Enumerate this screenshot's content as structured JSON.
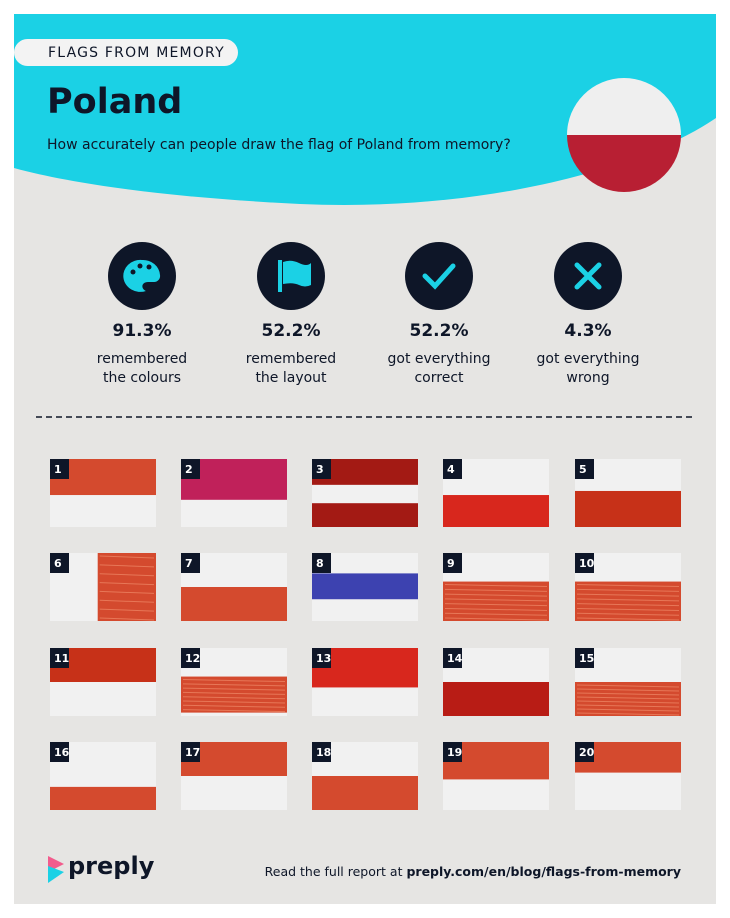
{
  "header": {
    "tag": "FLAGS FROM MEMORY",
    "title": "Poland",
    "subtitle": "How accurately can people draw the flag of Poland from memory?"
  },
  "stats": [
    {
      "value": "91.3%",
      "label_lines": [
        "remembered",
        "the colours"
      ]
    },
    {
      "value": "52.2%",
      "label_lines": [
        "remembered",
        "the layout"
      ]
    },
    {
      "value": "52.2%",
      "label_lines": [
        "got everything",
        "correct"
      ]
    },
    {
      "value": "4.3%",
      "label_lines": [
        "got everything",
        "wrong"
      ]
    }
  ],
  "flags": [
    "1",
    "2",
    "3",
    "4",
    "5",
    "6",
    "7",
    "8",
    "9",
    "10",
    "11",
    "12",
    "13",
    "14",
    "15",
    "16",
    "17",
    "18",
    "19",
    "20"
  ],
  "footer": {
    "brand": "preply",
    "text": "Read the full report at",
    "link": "preply.com/en/blog/flags-from-memory"
  }
}
